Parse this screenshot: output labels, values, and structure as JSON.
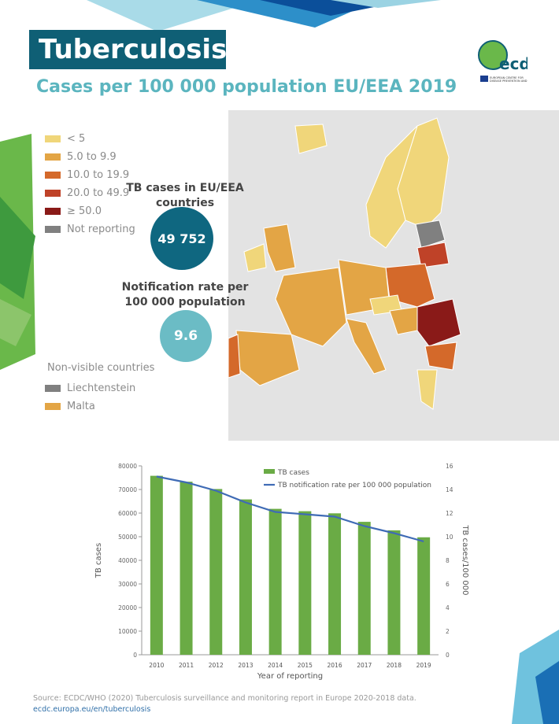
{
  "header": {
    "title": "Tuberculosis",
    "subtitle": "Cases per 100 000 population EU/EEA 2019"
  },
  "logo": {
    "text": "ecdc",
    "tagline": "EUROPEAN CENTRE FOR DISEASE PREVENTION AND CONTROL"
  },
  "legend": [
    {
      "label": "< 5",
      "color": "#f0d67a"
    },
    {
      "label": "5.0 to 9.9",
      "color": "#e3a545"
    },
    {
      "label": "10.0 to 19.9",
      "color": "#d4692a"
    },
    {
      "label": "20.0 to 49.9",
      "color": "#bf4228"
    },
    {
      "label": "≥ 50.0",
      "color": "#8a1a18"
    },
    {
      "label": "Not reporting",
      "color": "#808080"
    }
  ],
  "stats": {
    "cases_label": "TB cases in EU/EEA countries",
    "cases_value": "49 752",
    "rate_label": "Notification rate per 100 000 population",
    "rate_value": "9.6"
  },
  "non_visible": {
    "title": "Non-visible countries",
    "items": [
      {
        "label": "Liechtenstein",
        "color": "#808080"
      },
      {
        "label": "Malta",
        "color": "#e3a545"
      }
    ]
  },
  "chart_data": {
    "type": "bar",
    "categories": [
      "2010",
      "2011",
      "2012",
      "2013",
      "2014",
      "2015",
      "2016",
      "2017",
      "2018",
      "2019"
    ],
    "series": [
      {
        "name": "TB cases",
        "type": "bar",
        "axis": "left",
        "color": "#6aab45",
        "values": [
          75800,
          73300,
          70200,
          65800,
          61800,
          60800,
          59900,
          56300,
          52700,
          49752
        ]
      },
      {
        "name": "TB notification rate per 100 000 population",
        "type": "line",
        "axis": "right",
        "color": "#3f6bb5",
        "values": [
          15.1,
          14.6,
          13.9,
          12.9,
          12.1,
          11.9,
          11.7,
          10.9,
          10.3,
          9.6
        ]
      }
    ],
    "xlabel": "Year of reporting",
    "ylabel": "TB cases",
    "y2label": "TB cases/100 000",
    "ylim": [
      0,
      80000
    ],
    "y2lim": [
      0,
      16
    ],
    "yticks": [
      "0",
      "10000",
      "20000",
      "30000",
      "40000",
      "50000",
      "60000",
      "70000",
      "80000"
    ],
    "y2ticks": [
      "0",
      "2",
      "4",
      "6",
      "8",
      "10",
      "12",
      "14",
      "16"
    ],
    "legend_position": "top-right",
    "grid": false
  },
  "footer": {
    "source": "Source: ECDC/WHO (2020) Tuberculosis surveillance and monitoring report in Europe 2020-2018 data.",
    "link": "ecdc.europa.eu/en/tuberculosis"
  }
}
